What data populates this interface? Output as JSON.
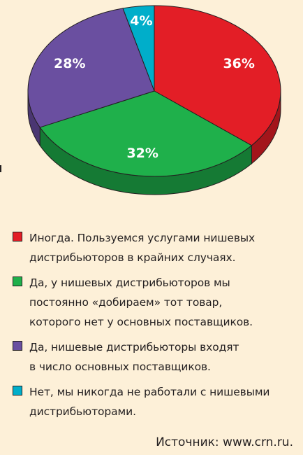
{
  "chart_data": {
    "type": "pie",
    "slices": [
      {
        "label": "Иногда. Пользуемся услугами нишевых дистрибьюторов в крайних случаях.",
        "value": 36,
        "display": "36%",
        "color": "#e31e26",
        "side": "#a3151b"
      },
      {
        "label": "Да, у нишевых дистрибьюторов мы постоянно «добираем» тот товар, которого нет у основных  поставщиков.",
        "value": 32,
        "display": "32%",
        "color": "#1fb04b",
        "side": "#157a34"
      },
      {
        "label": "Да, нишевые дистрибьюторы входят в число основных поставщиков.",
        "value": 28,
        "display": "28%",
        "color": "#6a4fa0",
        "side": "#4a3672"
      },
      {
        "label": "Нет, мы никогда не работали с нишевыми дистрибьюторами.",
        "value": 4,
        "display": "4%",
        "color": "#00aeca",
        "side": "#007a8e"
      }
    ],
    "legend": {
      "items": [
        {
          "lines": [
            "Иногда. Пользуемся услугами нишевых",
            "дистрибьюторов в крайних случаях."
          ],
          "color": "#e31e26"
        },
        {
          "lines": [
            "Да, у нишевых дистрибьюторов мы",
            "постоянно «добираем» тот товар,",
            "которого нет у основных  поставщиков."
          ],
          "color": "#1fb04b"
        },
        {
          "lines": [
            "Да, нишевые дистрибьюторы входят",
            "в число основных поставщиков."
          ],
          "color": "#6a4fa0"
        },
        {
          "lines": [
            "Нет, мы никогда не работали с нишевыми",
            "дистрибьюторами."
          ],
          "color": "#00aeca"
        }
      ],
      "placement": "bottom"
    },
    "source": "Источник:  www.crn.ru."
  }
}
